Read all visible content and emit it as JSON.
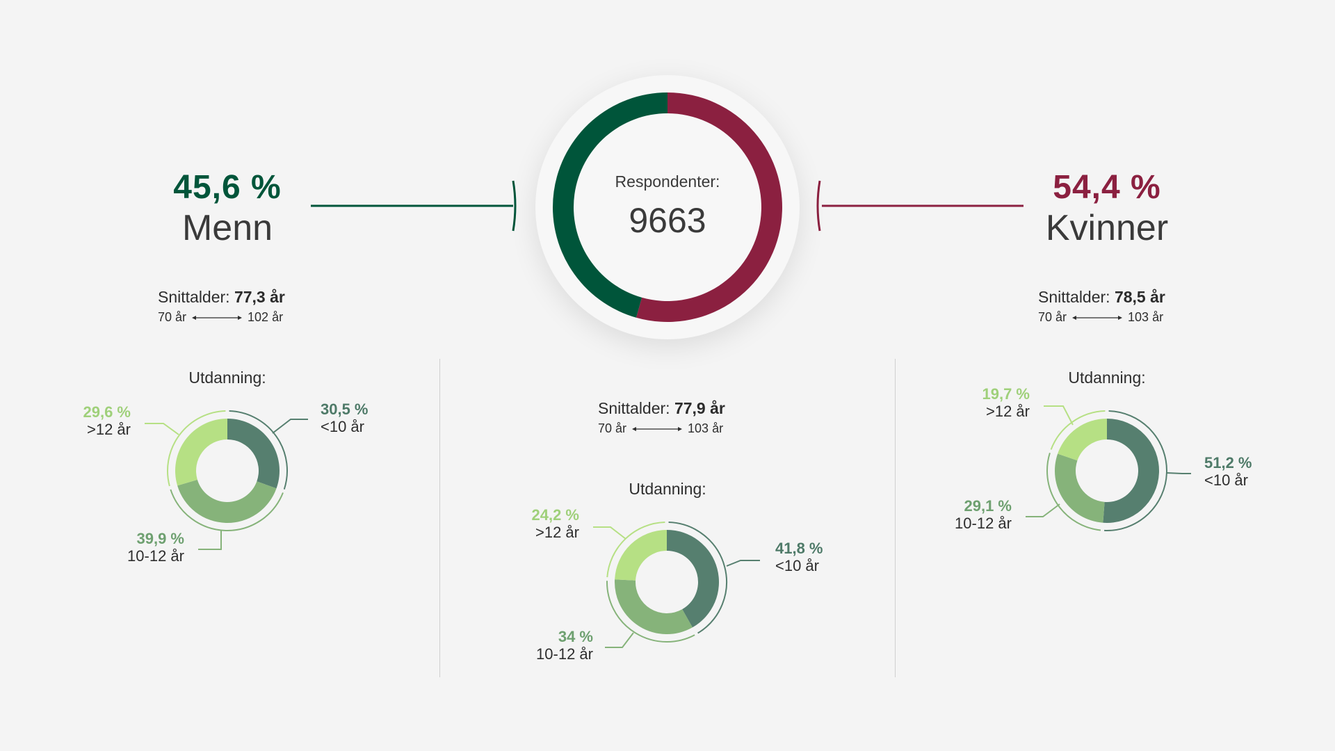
{
  "center": {
    "label": "Respondenter:",
    "count": "9663"
  },
  "men": {
    "pct": "45,6 %",
    "label": "Menn",
    "avg_prefix": "Snittalder:",
    "avg_value": "77,3 år",
    "range_min": "70 år",
    "range_max": "102 år",
    "edu_title": "Utdanning:"
  },
  "women": {
    "pct": "54,4 %",
    "label": "Kvinner",
    "avg_prefix": "Snittalder:",
    "avg_value": "78,5 år",
    "range_min": "70 år",
    "range_max": "103 år",
    "edu_title": "Utdanning:"
  },
  "all": {
    "avg_prefix": "Snittalder:",
    "avg_value": "77,9 år",
    "range_min": "70 år",
    "range_max": "103 år",
    "edu_title": "Utdanning:"
  },
  "colors": {
    "men": "#00553a",
    "women": "#8b2040",
    "edu_lt10": "#567f6f",
    "edu_10_12": "#86b37a",
    "edu_gt12": "#b6e084"
  },
  "chart_data": [
    {
      "type": "pie",
      "id": "gender",
      "categories": [
        "Menn",
        "Kvinner"
      ],
      "values": [
        45.6,
        54.4
      ]
    },
    {
      "type": "pie",
      "id": "edu-men",
      "categories": [
        "<10 år",
        "10-12 år",
        ">12 år"
      ],
      "values": [
        30.5,
        39.9,
        29.6
      ],
      "labels": [
        "30,5 %",
        "39,9 %",
        "29,6 %"
      ]
    },
    {
      "type": "pie",
      "id": "edu-all",
      "categories": [
        "<10 år",
        "10-12 år",
        ">12 år"
      ],
      "values": [
        41.8,
        34,
        24.2
      ],
      "labels": [
        "41,8 %",
        "34 %",
        "24,2 %"
      ]
    },
    {
      "type": "pie",
      "id": "edu-women",
      "categories": [
        "<10 år",
        "10-12 år",
        ">12 år"
      ],
      "values": [
        51.2,
        29.1,
        19.7
      ],
      "labels": [
        "51,2 %",
        "29,1 %",
        "19,7 %"
      ]
    }
  ]
}
